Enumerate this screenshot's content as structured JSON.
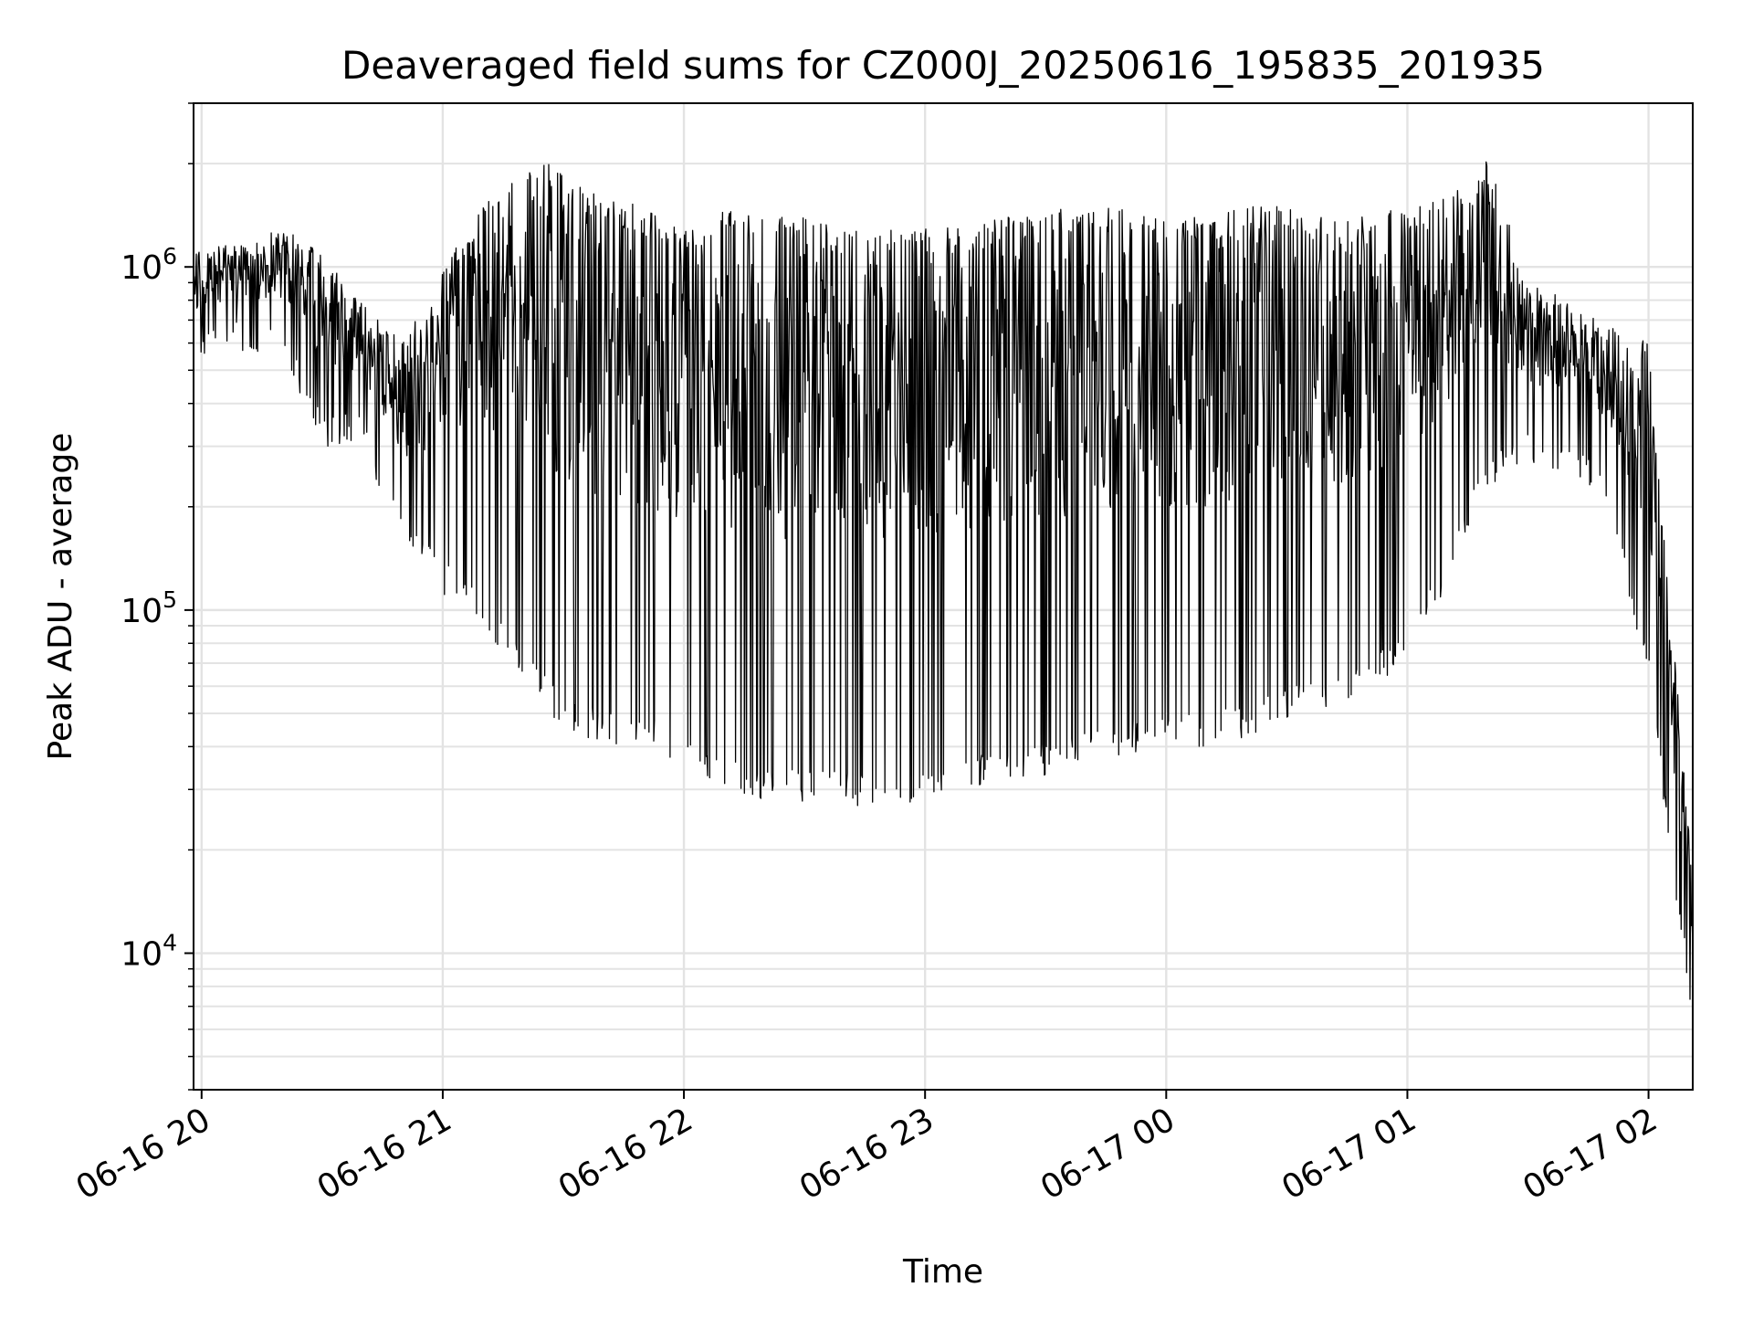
{
  "chart_data": {
    "type": "line",
    "title": "Deaveraged field sums for CZ000J_20250616_195835_201935",
    "xlabel": "Time",
    "ylabel": "Peak ADU - average",
    "yscale": "log",
    "ylim": [
      4000,
      3000000
    ],
    "xlim": [
      "2025-06-16 19:58",
      "2025-06-17 02:11"
    ],
    "x_ticks": [
      "06-16 20",
      "06-16 21",
      "06-16 22",
      "06-16 23",
      "06-17 00",
      "06-17 01",
      "06-17 02"
    ],
    "y_ticks": [
      {
        "base": "10",
        "exp": "4",
        "value": 10000
      },
      {
        "base": "10",
        "exp": "5",
        "value": 100000
      },
      {
        "base": "10",
        "exp": "6",
        "value": 1000000
      }
    ],
    "grid": true,
    "line_color": "#000000",
    "series": [
      {
        "x": [
          "2025-06-16 19:58",
          "2025-06-16 20:10",
          "2025-06-16 20:20",
          "2025-06-16 20:30",
          "2025-06-16 20:40",
          "2025-06-16 20:50",
          "2025-06-16 21:00",
          "2025-06-16 21:10",
          "2025-06-16 21:20",
          "2025-06-16 21:30",
          "2025-06-16 21:40",
          "2025-06-16 21:50",
          "2025-06-16 22:00",
          "2025-06-16 22:10",
          "2025-06-16 22:20",
          "2025-06-16 22:30",
          "2025-06-16 22:40",
          "2025-06-16 22:50",
          "2025-06-16 23:00",
          "2025-06-16 23:10",
          "2025-06-16 23:20",
          "2025-06-16 23:30",
          "2025-06-16 23:40",
          "2025-06-16 23:50",
          "2025-06-17 00:00",
          "2025-06-17 00:10",
          "2025-06-17 00:20",
          "2025-06-17 00:30",
          "2025-06-17 00:40",
          "2025-06-17 00:50",
          "2025-06-17 01:00",
          "2025-06-17 01:10",
          "2025-06-17 01:20",
          "2025-06-17 01:30",
          "2025-06-17 01:40",
          "2025-06-17 01:50",
          "2025-06-17 02:00",
          "2025-06-17 02:11"
        ],
        "high": [
          1100000,
          1200000,
          1300000,
          1100000,
          800000,
          600000,
          1000000,
          1600000,
          2200000,
          1900000,
          1600000,
          1500000,
          1300000,
          1500000,
          1400000,
          1400000,
          1300000,
          1300000,
          1300000,
          1300000,
          1400000,
          1500000,
          1500000,
          1500000,
          1400000,
          1400000,
          1500000,
          1500000,
          1400000,
          1400000,
          1500000,
          1600000,
          2100000,
          900000,
          800000,
          700000,
          600000,
          17000
        ],
        "low": [
          550000,
          550000,
          550000,
          300000,
          300000,
          150000,
          110000,
          90000,
          60000,
          45000,
          40000,
          40000,
          35000,
          30000,
          28000,
          27000,
          27000,
          26000,
          27000,
          30000,
          30000,
          33000,
          35000,
          38000,
          40000,
          40000,
          42000,
          48000,
          52000,
          58000,
          70000,
          120000,
          220000,
          260000,
          250000,
          200000,
          60000,
          6000
        ]
      }
    ]
  }
}
